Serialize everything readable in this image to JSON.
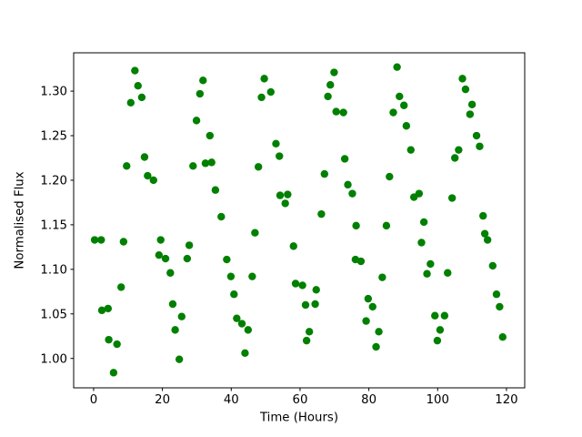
{
  "figure": {
    "background": "#ffffff",
    "spine_color": "#000000",
    "tick_label_color": "#000000"
  },
  "chart_data": {
    "type": "scatter",
    "title": "",
    "xlabel": "Time (Hours)",
    "ylabel": "Normalised Flux",
    "legend": null,
    "grid": false,
    "marker": {
      "shape": "circle",
      "color": "#008000"
    },
    "xlim": [
      -5.8,
      125.3
    ],
    "ylim": [
      0.967,
      1.343
    ],
    "xticks": [
      {
        "value": 0,
        "label": "0"
      },
      {
        "value": 20,
        "label": "20"
      },
      {
        "value": 40,
        "label": "40"
      },
      {
        "value": 60,
        "label": "60"
      },
      {
        "value": 80,
        "label": "80"
      },
      {
        "value": 100,
        "label": "100"
      },
      {
        "value": 120,
        "label": "120"
      }
    ],
    "yticks": [
      {
        "value": 1.0,
        "label": "1.00"
      },
      {
        "value": 1.05,
        "label": "1.05"
      },
      {
        "value": 1.1,
        "label": "1.10"
      },
      {
        "value": 1.15,
        "label": "1.15"
      },
      {
        "value": 1.2,
        "label": "1.20"
      },
      {
        "value": 1.25,
        "label": "1.25"
      },
      {
        "value": 1.3,
        "label": "1.30"
      }
    ],
    "points": [
      [
        12.0,
        1.323
      ],
      [
        12.9,
        1.306
      ],
      [
        14.0,
        1.293
      ],
      [
        10.8,
        1.287
      ],
      [
        14.8,
        1.226
      ],
      [
        9.6,
        1.216
      ],
      [
        31.8,
        1.312
      ],
      [
        30.9,
        1.297
      ],
      [
        29.9,
        1.267
      ],
      [
        33.8,
        1.25
      ],
      [
        28.9,
        1.216
      ],
      [
        32.5,
        1.219
      ],
      [
        34.3,
        1.22
      ],
      [
        49.6,
        1.314
      ],
      [
        51.5,
        1.299
      ],
      [
        48.8,
        1.293
      ],
      [
        53.0,
        1.241
      ],
      [
        54.0,
        1.227
      ],
      [
        47.9,
        1.215
      ],
      [
        69.9,
        1.321
      ],
      [
        68.8,
        1.307
      ],
      [
        68.1,
        1.294
      ],
      [
        70.5,
        1.277
      ],
      [
        72.6,
        1.276
      ],
      [
        73.0,
        1.224
      ],
      [
        88.2,
        1.327
      ],
      [
        88.9,
        1.294
      ],
      [
        90.2,
        1.284
      ],
      [
        87.1,
        1.276
      ],
      [
        90.9,
        1.261
      ],
      [
        92.2,
        1.234
      ],
      [
        107.2,
        1.314
      ],
      [
        108.1,
        1.302
      ],
      [
        110.0,
        1.285
      ],
      [
        109.4,
        1.274
      ],
      [
        111.3,
        1.25
      ],
      [
        112.2,
        1.238
      ],
      [
        106.1,
        1.234
      ],
      [
        105.0,
        1.225
      ],
      [
        15.7,
        1.205
      ],
      [
        17.4,
        1.2
      ],
      [
        35.4,
        1.189
      ],
      [
        37.1,
        1.159
      ],
      [
        0.3,
        1.133
      ],
      [
        2.2,
        1.133
      ],
      [
        8.7,
        1.131
      ],
      [
        19.5,
        1.133
      ],
      [
        19.0,
        1.116
      ],
      [
        20.9,
        1.112
      ],
      [
        27.8,
        1.127
      ],
      [
        27.2,
        1.112
      ],
      [
        22.3,
        1.096
      ],
      [
        67.1,
        1.207
      ],
      [
        73.9,
        1.195
      ],
      [
        75.2,
        1.185
      ],
      [
        54.2,
        1.183
      ],
      [
        56.4,
        1.184
      ],
      [
        55.7,
        1.174
      ],
      [
        66.2,
        1.162
      ],
      [
        76.3,
        1.149
      ],
      [
        46.9,
        1.141
      ],
      [
        58.1,
        1.126
      ],
      [
        76.1,
        1.111
      ],
      [
        77.7,
        1.109
      ],
      [
        46.1,
        1.092
      ],
      [
        38.7,
        1.111
      ],
      [
        39.9,
        1.092
      ],
      [
        86.0,
        1.204
      ],
      [
        93.1,
        1.181
      ],
      [
        94.6,
        1.185
      ],
      [
        104.2,
        1.18
      ],
      [
        113.2,
        1.16
      ],
      [
        85.1,
        1.149
      ],
      [
        96.0,
        1.153
      ],
      [
        95.3,
        1.13
      ],
      [
        113.7,
        1.14
      ],
      [
        114.5,
        1.133
      ],
      [
        97.9,
        1.106
      ],
      [
        96.9,
        1.095
      ],
      [
        102.9,
        1.096
      ],
      [
        116.0,
        1.104
      ],
      [
        83.9,
        1.091
      ],
      [
        8.0,
        1.08
      ],
      [
        2.4,
        1.054
      ],
      [
        4.2,
        1.056
      ],
      [
        4.4,
        1.021
      ],
      [
        6.8,
        1.016
      ],
      [
        5.8,
        0.984
      ],
      [
        23.0,
        1.061
      ],
      [
        25.6,
        1.047
      ],
      [
        23.7,
        1.032
      ],
      [
        24.9,
        0.999
      ],
      [
        40.8,
        1.072
      ],
      [
        41.6,
        1.045
      ],
      [
        43.1,
        1.039
      ],
      [
        44.9,
        1.032
      ],
      [
        44.0,
        1.006
      ],
      [
        58.7,
        1.084
      ],
      [
        60.7,
        1.082
      ],
      [
        64.7,
        1.077
      ],
      [
        61.6,
        1.06
      ],
      [
        64.4,
        1.061
      ],
      [
        62.7,
        1.03
      ],
      [
        61.9,
        1.02
      ],
      [
        79.8,
        1.067
      ],
      [
        81.1,
        1.058
      ],
      [
        79.2,
        1.042
      ],
      [
        82.9,
        1.03
      ],
      [
        82.1,
        1.013
      ],
      [
        99.2,
        1.048
      ],
      [
        102.0,
        1.048
      ],
      [
        100.7,
        1.032
      ],
      [
        99.9,
        1.02
      ],
      [
        117.1,
        1.072
      ],
      [
        118.0,
        1.058
      ],
      [
        118.9,
        1.024
      ]
    ]
  }
}
